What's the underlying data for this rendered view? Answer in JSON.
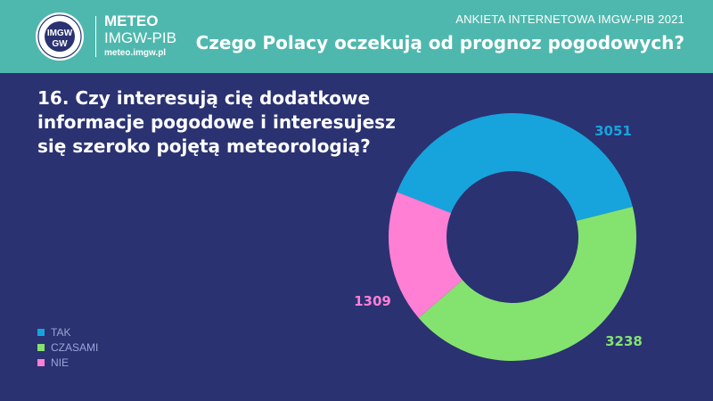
{
  "header": {
    "brand_name": "METEO",
    "brand_sub": "IMGW-PIB",
    "brand_url": "meteo.imgw.pl",
    "seal_top": "IMGW",
    "seal_bottom": "GW",
    "survey_name": "ANKIETA INTERNETOWA IMGW-PIB 2021",
    "title": "Czego Polacy oczekują od prognoz pogodowych?"
  },
  "question": "16. Czy interesują cię dodatkowe informacje pogodowe i interesujesz się szeroko pojętą meteorologią?",
  "colors": {
    "background": "#2a3272",
    "header": "#4fb8ae"
  },
  "chart_data": {
    "type": "pie",
    "style": "donut",
    "legend_position": "bottom-left",
    "categories": [
      "TAK",
      "CZASAMI",
      "NIE"
    ],
    "values": [
      3051,
      3238,
      1309
    ],
    "colors": [
      "#17a4dc",
      "#84e36e",
      "#ff7fd4"
    ]
  }
}
